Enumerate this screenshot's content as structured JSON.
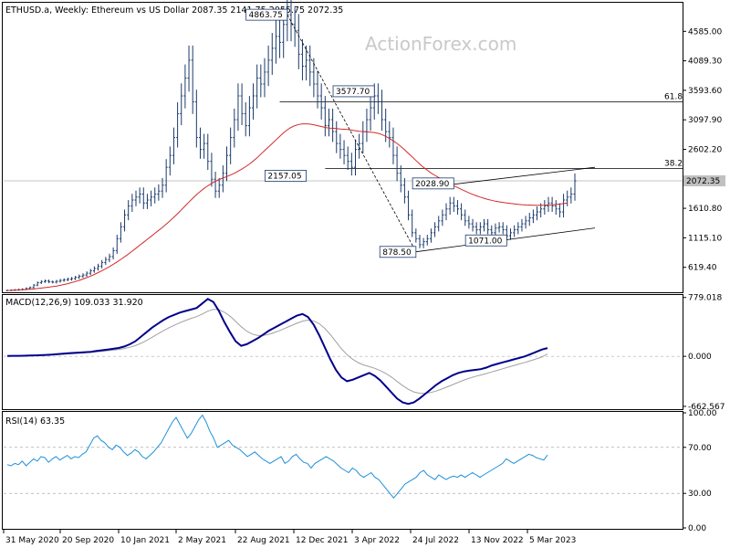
{
  "header": {
    "symbol_info": "ETHUSD.a, Weekly:  Ethereum vs US Dollar  2087.35 2141.75 2055.75 2072.35",
    "watermark": "ActionForex.com"
  },
  "colors": {
    "candle": "#1b3a6b",
    "ma": "#d42a2a",
    "macd": "#00008b",
    "signal": "#a0a0a0",
    "rsi": "#1e90d8",
    "price_tag_bg": "#c0c0c0"
  },
  "chart_data": [
    {
      "type": "candlestick",
      "panel": "price",
      "x_ticks": [
        "31 May 2020",
        "20 Sep 2020",
        "10 Jan 2021",
        "2 May 2021",
        "22 Aug 2021",
        "12 Dec 2021",
        "3 Apr 2022",
        "24 Jul 2022",
        "13 Nov 2022",
        "5 Mar 2023"
      ],
      "y_ticks": [
        4585.0,
        4089.3,
        3593.6,
        3097.9,
        2602.2,
        2106.5,
        1610.8,
        1115.1,
        619.4
      ],
      "ylim": [
        200,
        5050
      ],
      "current_price_label": "2072.35",
      "close_series": [
        230,
        235,
        240,
        245,
        250,
        265,
        280,
        320,
        360,
        380,
        390,
        375,
        370,
        385,
        400,
        410,
        420,
        430,
        450,
        470,
        490,
        520,
        560,
        600,
        640,
        700,
        750,
        800,
        900,
        1100,
        1300,
        1500,
        1650,
        1750,
        1800,
        1850,
        1700,
        1750,
        1800,
        1850,
        1900,
        2000,
        2300,
        2500,
        2800,
        3200,
        3500,
        3800,
        4100,
        3400,
        2800,
        2600,
        2700,
        2400,
        2100,
        1900,
        2000,
        2200,
        2500,
        2800,
        3100,
        3500,
        3200,
        3000,
        3300,
        3500,
        3800,
        3700,
        3900,
        4100,
        4300,
        4500,
        4400,
        4700,
        4863,
        4700,
        4600,
        4200,
        4000,
        4100,
        3900,
        3700,
        3500,
        3300,
        3000,
        3100,
        2900,
        2700,
        2600,
        2500,
        2400,
        2300,
        2600,
        2700,
        2900,
        3100,
        3300,
        3500,
        3400,
        3100,
        2900,
        2800,
        2500,
        2200,
        2000,
        1800,
        1500,
        1200,
        1100,
        1000,
        1050,
        1100,
        1200,
        1300,
        1400,
        1500,
        1600,
        1700,
        1650,
        1600,
        1500,
        1400,
        1350,
        1300,
        1250,
        1300,
        1350,
        1250,
        1200,
        1280,
        1300,
        1250,
        1150,
        1200,
        1250,
        1300,
        1350,
        1400,
        1450,
        1500,
        1550,
        1600,
        1650,
        1700,
        1650,
        1600,
        1550,
        1750,
        1800,
        1850,
        2072
      ],
      "ma_series": [
        230,
        232,
        235,
        238,
        242,
        246,
        250,
        256,
        263,
        270,
        278,
        286,
        295,
        305,
        316,
        330,
        345,
        362,
        380,
        400,
        422,
        446,
        472,
        500,
        530,
        562,
        596,
        632,
        670,
        710,
        752,
        796,
        842,
        890,
        940,
        990,
        1040,
        1090,
        1140,
        1190,
        1240,
        1290,
        1345,
        1400,
        1460,
        1520,
        1585,
        1650,
        1715,
        1780,
        1840,
        1895,
        1945,
        1990,
        2030,
        2065,
        2095,
        2120,
        2145,
        2170,
        2200,
        2235,
        2270,
        2310,
        2355,
        2405,
        2460,
        2520,
        2580,
        2640,
        2700,
        2760,
        2820,
        2880,
        2930,
        2970,
        3000,
        3020,
        3030,
        3030,
        3025,
        3015,
        3000,
        2985,
        2970,
        2960,
        2955,
        2950,
        2945,
        2940,
        2935,
        2925,
        2915,
        2905,
        2900,
        2895,
        2890,
        2885,
        2870,
        2850,
        2820,
        2785,
        2745,
        2700,
        2650,
        2595,
        2535,
        2475,
        2415,
        2355,
        2300,
        2250,
        2205,
        2165,
        2130,
        2095,
        2060,
        2025,
        1990,
        1960,
        1930,
        1900,
        1870,
        1845,
        1820,
        1800,
        1780,
        1760,
        1745,
        1730,
        1720,
        1710,
        1700,
        1692,
        1685,
        1678,
        1672,
        1668,
        1665,
        1663,
        1662,
        1662,
        1664,
        1667,
        1671,
        1676,
        1682,
        1690,
        1700
      ],
      "levels": [
        {
          "name": "61.8",
          "value": 3400
        },
        {
          "name": "38.2",
          "value": 2280
        }
      ],
      "annotations": [
        {
          "text": "4863.75",
          "x_index": 74,
          "value": 4863.75
        },
        {
          "text": "3577.70",
          "x_index": 97,
          "value": 3577.7
        },
        {
          "text": "2157.05",
          "x_index": 79,
          "value": 2157.05
        },
        {
          "text": "2028.90",
          "x_index": 118,
          "value": 2028.9
        },
        {
          "text": "1071.00",
          "x_index": 132,
          "value": 1071.0
        },
        {
          "text": "878.50",
          "x_index": 108,
          "value": 878.5
        }
      ]
    },
    {
      "type": "line",
      "panel": "macd",
      "title": "MACD(12,26,9) 109.033 31.920",
      "y_ticks": [
        779.018,
        0.0,
        -662.567
      ],
      "ylim": [
        -700,
        800
      ],
      "macd_series": [
        5,
        6,
        7,
        8,
        10,
        12,
        15,
        18,
        22,
        28,
        34,
        40,
        45,
        50,
        55,
        60,
        70,
        80,
        90,
        100,
        110,
        130,
        160,
        200,
        260,
        320,
        380,
        430,
        480,
        520,
        550,
        580,
        600,
        620,
        640,
        700,
        760,
        720,
        600,
        450,
        320,
        200,
        140,
        160,
        200,
        240,
        290,
        340,
        380,
        420,
        460,
        500,
        540,
        560,
        520,
        420,
        280,
        120,
        -40,
        -180,
        -280,
        -330,
        -310,
        -280,
        -250,
        -220,
        -260,
        -320,
        -400,
        -480,
        -560,
        -610,
        -630,
        -610,
        -560,
        -500,
        -440,
        -380,
        -330,
        -290,
        -250,
        -220,
        -200,
        -190,
        -180,
        -170,
        -150,
        -120,
        -100,
        -80,
        -60,
        -40,
        -20,
        0,
        30,
        60,
        90,
        109
      ],
      "signal_series": [
        4,
        5,
        6,
        7,
        8,
        10,
        12,
        15,
        18,
        22,
        27,
        32,
        37,
        42,
        47,
        52,
        58,
        66,
        74,
        82,
        91,
        103,
        120,
        142,
        172,
        210,
        252,
        295,
        338,
        378,
        412,
        445,
        475,
        502,
        526,
        559,
        598,
        622,
        618,
        584,
        532,
        464,
        392,
        333,
        294,
        275,
        277,
        292,
        316,
        344,
        375,
        407,
        438,
        466,
        480,
        470,
        432,
        370,
        288,
        194,
        100,
        22,
        -38,
        -83,
        -114,
        -136,
        -159,
        -189,
        -228,
        -276,
        -333,
        -388,
        -436,
        -471,
        -488,
        -490,
        -480,
        -460,
        -434,
        -405,
        -374,
        -343,
        -314,
        -289,
        -267,
        -248,
        -228,
        -207,
        -186,
        -164,
        -142,
        -121,
        -100,
        -80,
        -58,
        -34,
        -9,
        32
      ],
      "zero_line": 0
    },
    {
      "type": "line",
      "panel": "rsi",
      "title": "RSI(14) 63.35",
      "y_ticks": [
        100.0,
        70.0,
        30.0,
        0.0
      ],
      "ylim": [
        0,
        100
      ],
      "levels": [
        70,
        30
      ],
      "series": [
        55,
        54,
        56,
        55,
        58,
        54,
        57,
        60,
        58,
        62,
        61,
        57,
        60,
        62,
        59,
        61,
        63,
        60,
        62,
        61,
        64,
        66,
        72,
        78,
        80,
        76,
        74,
        70,
        68,
        72,
        70,
        66,
        63,
        65,
        68,
        66,
        62,
        60,
        63,
        66,
        70,
        74,
        80,
        86,
        92,
        96,
        90,
        84,
        78,
        82,
        88,
        94,
        98,
        92,
        84,
        78,
        70,
        72,
        74,
        76,
        72,
        70,
        68,
        65,
        62,
        64,
        66,
        63,
        60,
        58,
        56,
        58,
        60,
        62,
        56,
        58,
        62,
        64,
        60,
        57,
        56,
        52,
        56,
        58,
        60,
        62,
        60,
        58,
        55,
        52,
        50,
        48,
        52,
        50,
        46,
        44,
        46,
        48,
        44,
        42,
        38,
        34,
        30,
        26,
        30,
        34,
        38,
        40,
        42,
        44,
        48,
        50,
        46,
        44,
        42,
        46,
        44,
        42,
        44,
        45,
        44,
        46,
        44,
        46,
        48,
        46,
        44,
        46,
        48,
        50,
        52,
        54,
        56,
        60,
        58,
        56,
        58,
        60,
        62,
        64,
        63,
        61,
        60,
        59,
        63.35
      ]
    }
  ],
  "panel_label_axis": [
    "31 May 2020",
    "20 Sep 2020",
    "10 Jan 2021",
    "2 May 2021",
    "22 Aug 2021",
    "12 Dec 2021",
    "3 Apr 2022",
    "24 Jul 2022",
    "13 Nov 2022",
    "5 Mar 2023"
  ]
}
